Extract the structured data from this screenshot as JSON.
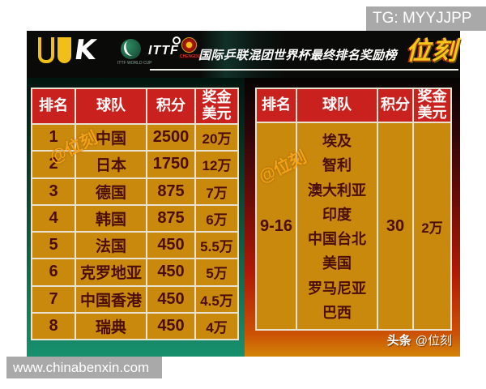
{
  "top_bar": {
    "tg_label": "TG: MYYJJPP"
  },
  "bottom_bar": {
    "website": "www.chinabenxin.com"
  },
  "header": {
    "title": "国际乒联混团世界杯最终排名奖励榜",
    "brand_logo": "位刻",
    "ittf_label": "ITTF",
    "ittf_worldcup_caption": "ITTF WORLD CUP",
    "chengdu_caption": "CHENGDU"
  },
  "watermark": {
    "text": "@位刻"
  },
  "credit": {
    "prefix": "头条",
    "handle": "@位刻"
  },
  "left_table": {
    "headers": [
      "排名",
      "球队",
      "积分",
      "奖金美元"
    ],
    "rows": [
      {
        "rank": "1",
        "team": "中国",
        "points": "2500",
        "prize": "20万"
      },
      {
        "rank": "2",
        "team": "日本",
        "points": "1750",
        "prize": "12万"
      },
      {
        "rank": "3",
        "team": "德国",
        "points": "875",
        "prize": "7万"
      },
      {
        "rank": "4",
        "team": "韩国",
        "points": "875",
        "prize": "6万"
      },
      {
        "rank": "5",
        "team": "法国",
        "points": "450",
        "prize": "5.5万"
      },
      {
        "rank": "6",
        "team": "克罗地亚",
        "points": "450",
        "prize": "5万"
      },
      {
        "rank": "7",
        "team": "中国香港",
        "points": "450",
        "prize": "4.5万"
      },
      {
        "rank": "8",
        "team": "瑞典",
        "points": "450",
        "prize": "4万"
      }
    ]
  },
  "right_table": {
    "headers": [
      "排名",
      "球队",
      "积分",
      "奖金美元"
    ],
    "rank": "9-16",
    "teams": [
      "埃及",
      "智利",
      "澳大利亚",
      "印度",
      "中国台北",
      "美国",
      "罗马尼亚",
      "巴西"
    ],
    "points": "30",
    "prize": "2万"
  },
  "colors": {
    "cell_gold": "#C8890D",
    "header_red": "#C9211E",
    "cell_text_maroon": "#4A0D08",
    "panel_teal": "#17906D",
    "panel_orange": "#D38508",
    "brand_yellow": "#F5C518",
    "gray_bar": "#A9A9A9"
  },
  "chart_data": [
    {
      "type": "table",
      "title": "国际乒联混团世界杯最终排名奖励榜",
      "columns": [
        "排名",
        "球队",
        "积分",
        "奖金美元"
      ],
      "rows": [
        [
          "1",
          "中国",
          "2500",
          "20万"
        ],
        [
          "2",
          "日本",
          "1750",
          "12万"
        ],
        [
          "3",
          "德国",
          "875",
          "7万"
        ],
        [
          "4",
          "韩国",
          "875",
          "6万"
        ],
        [
          "5",
          "法国",
          "450",
          "5.5万"
        ],
        [
          "6",
          "克罗地亚",
          "450",
          "5万"
        ],
        [
          "7",
          "中国香港",
          "450",
          "4.5万"
        ],
        [
          "8",
          "瑞典",
          "450",
          "4万"
        ]
      ]
    },
    {
      "type": "table",
      "title": "国际乒联混团世界杯最终排名奖励榜 (9-16名)",
      "columns": [
        "排名",
        "球队",
        "积分",
        "奖金美元"
      ],
      "rows": [
        [
          "9-16",
          "埃及 / 智利 / 澳大利亚 / 印度 / 中国台北 / 美国 / 罗马尼亚 / 巴西",
          "30",
          "2万"
        ]
      ]
    }
  ]
}
